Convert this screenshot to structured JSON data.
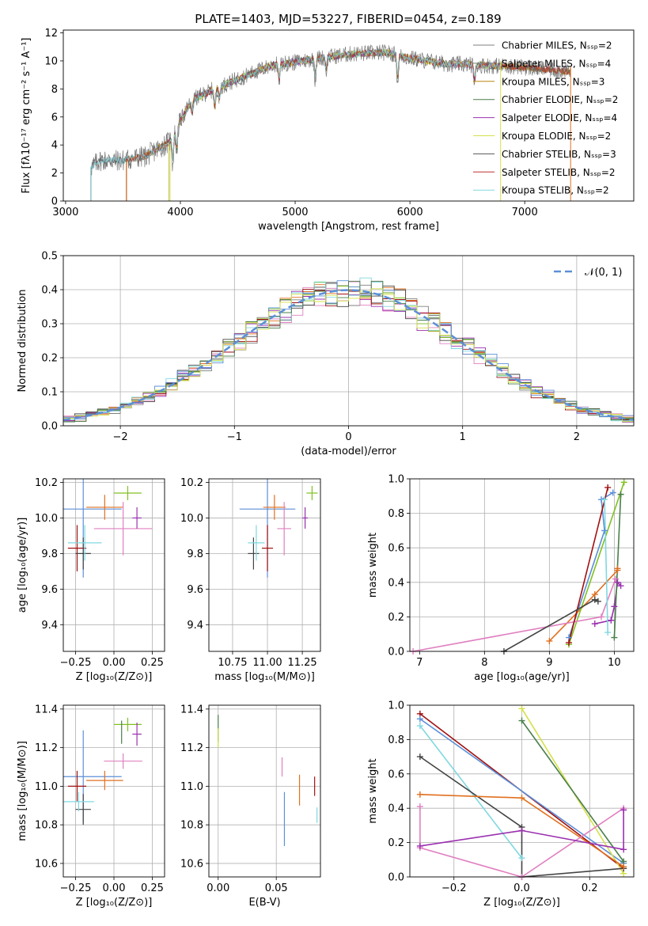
{
  "figure_title": "PLATE=1403, MJD=53227, FIBERID=0454, z=0.189",
  "model_colors": [
    "#7f7f7f",
    "#7f7f7f",
    "#b8860b",
    "#4a7f4a",
    "#9b30b0",
    "#d4e04a",
    "#555555",
    "#c03030",
    "#80d8e0"
  ],
  "chart_data": [
    {
      "id": "spectrum",
      "type": "line",
      "title": "PLATE=1403, MJD=53227, FIBERID=0454, z=0.189",
      "xlabel": "wavelength [Angstrom, rest frame]",
      "ylabel": "Flux [fλ10⁻¹⁷ erg cm⁻² s⁻¹ A⁻¹]",
      "xlim": [
        2980,
        7950
      ],
      "ylim": [
        0,
        12.2
      ],
      "xticks": [
        3000,
        4000,
        5000,
        6000,
        7000
      ],
      "yticks": [
        0,
        2,
        4,
        6,
        8,
        10,
        12
      ],
      "series": [
        {
          "name": "Chabrier MILES, Nₛₛₚ=2",
          "color": "#7f7f7f"
        },
        {
          "name": "Salpeter MILES, Nₛₛₚ=4",
          "color": "#7f7f7f"
        },
        {
          "name": "Kroupa MILES, Nₛₛₚ=3",
          "color": "#b8860b"
        },
        {
          "name": "Chabrier ELODIE, Nₛₛₚ=2",
          "color": "#4a7f4a"
        },
        {
          "name": "Salpeter ELODIE, Nₛₛₚ=4",
          "color": "#9b30b0"
        },
        {
          "name": "Kroupa ELODIE, Nₛₛₚ=2",
          "color": "#d4e04a"
        },
        {
          "name": "Chabrier STELIB, Nₛₛₚ=3",
          "color": "#555555"
        },
        {
          "name": "Salpeter STELIB, Nₛₛₚ=2",
          "color": "#c03030"
        },
        {
          "name": "Kroupa STELIB, Nₛₛₚ=2",
          "color": "#80d8e0"
        }
      ],
      "continuum": {
        "x": [
          3220,
          3300,
          3500,
          3700,
          3900,
          4100,
          4300,
          4500,
          4800,
          5000,
          5200,
          5500,
          5800,
          6000,
          6300,
          6600,
          6900,
          7200,
          7400
        ],
        "y": [
          2.4,
          2.9,
          2.9,
          3.2,
          4.2,
          7.2,
          8.0,
          8.7,
          9.7,
          9.9,
          10.2,
          10.5,
          10.6,
          10.2,
          9.8,
          9.7,
          9.6,
          9.4,
          9.2
        ]
      },
      "grid": false,
      "legend": "top-right"
    },
    {
      "id": "residuals",
      "type": "line",
      "xlabel": "(data-model)/error",
      "ylabel": "Normed distribution",
      "xlim": [
        -2.5,
        2.5
      ],
      "ylim": [
        0,
        0.5
      ],
      "xticks": [
        -2,
        -1,
        0,
        1,
        2
      ],
      "yticks": [
        0.0,
        0.1,
        0.2,
        0.3,
        0.4,
        0.5
      ],
      "legend_label": "𝒩(0, 1)",
      "legend_color": "#5b8fd8",
      "grid": true,
      "legend": "top-right"
    },
    {
      "id": "age-vs-Z",
      "type": "scatter",
      "xlabel": "Z [log₁₀(Z/Z⊙)]",
      "ylabel": "age  [log₁₀(age/yr)]",
      "xlim": [
        -0.33,
        0.33
      ],
      "ylim": [
        9.25,
        10.22
      ],
      "xticks": [
        -0.25,
        0.0,
        0.25
      ],
      "xticklabels": [
        "−0.25",
        "0.00",
        "0.25"
      ],
      "yticks": [
        9.4,
        9.6,
        9.8,
        10.0,
        10.2
      ],
      "points": [
        {
          "x": -0.2,
          "y": 10.05,
          "xerr": 0.5,
          "yerr": 0.77,
          "color": "#5b8fd8"
        },
        {
          "x": -0.06,
          "y": 10.06,
          "xerr": 0.24,
          "yerr": 0.14,
          "color": "#e07020"
        },
        {
          "x": 0.09,
          "y": 10.14,
          "xerr": 0.18,
          "yerr": 0.08,
          "color": "#80c020"
        },
        {
          "x": 0.06,
          "y": 9.94,
          "xerr": 0.38,
          "yerr": 0.3,
          "color": "#e080c0"
        },
        {
          "x": 0.15,
          "y": 10.0,
          "xerr": 0.06,
          "yerr": 0.12,
          "color": "#9b30b0"
        },
        {
          "x": -0.24,
          "y": 9.83,
          "xerr": 0.12,
          "yerr": 0.26,
          "color": "#a01010"
        },
        {
          "x": -0.2,
          "y": 9.8,
          "xerr": 0.1,
          "yerr": 0.18,
          "color": "#444444"
        },
        {
          "x": -0.19,
          "y": 9.86,
          "xerr": 0.22,
          "yerr": 0.2,
          "color": "#80d8e0"
        }
      ],
      "grid": true
    },
    {
      "id": "age-vs-mass",
      "type": "scatter",
      "xlabel": "mass [log₁₀(M/M⊙)]",
      "xlim": [
        10.58,
        11.38
      ],
      "ylim": [
        9.25,
        10.22
      ],
      "xticks": [
        10.75,
        11.0,
        11.25
      ],
      "xticklabels": [
        "10.75",
        "11.00",
        "11.25"
      ],
      "yticks": [
        9.4,
        9.6,
        9.8,
        10.0,
        10.2
      ],
      "points": [
        {
          "x": 11.0,
          "y": 10.05,
          "xerr": 0.4,
          "yerr": 0.77,
          "color": "#5b8fd8"
        },
        {
          "x": 11.05,
          "y": 10.06,
          "xerr": 0.16,
          "yerr": 0.14,
          "color": "#e07020"
        },
        {
          "x": 11.32,
          "y": 10.14,
          "xerr": 0.08,
          "yerr": 0.08,
          "color": "#80c020"
        },
        {
          "x": 11.12,
          "y": 9.94,
          "xerr": 0.1,
          "yerr": 0.3,
          "color": "#e080c0"
        },
        {
          "x": 11.27,
          "y": 10.0,
          "xerr": 0.04,
          "yerr": 0.12,
          "color": "#9b30b0"
        },
        {
          "x": 11.0,
          "y": 9.83,
          "xerr": 0.08,
          "yerr": 0.26,
          "color": "#a01010"
        },
        {
          "x": 10.9,
          "y": 9.8,
          "xerr": 0.08,
          "yerr": 0.18,
          "color": "#444444"
        },
        {
          "x": 10.92,
          "y": 9.86,
          "xerr": 0.12,
          "yerr": 0.2,
          "color": "#80d8e0"
        }
      ],
      "grid": true
    },
    {
      "id": "weight-vs-age",
      "type": "line",
      "xlabel": "age  [log₁₀(age/yr)]",
      "ylabel": "mass weight",
      "xlim": [
        6.85,
        10.3
      ],
      "ylim": [
        0,
        1.0
      ],
      "xticks": [
        7,
        8,
        9,
        10
      ],
      "yticks": [
        0.0,
        0.2,
        0.4,
        0.6,
        0.8,
        1.0
      ],
      "series": [
        {
          "color": "#5b8fd8",
          "x": [
            9.3,
            9.85,
            9.8,
            9.98
          ],
          "y": [
            0.08,
            0.7,
            0.88,
            0.92
          ]
        },
        {
          "color": "#e07020",
          "x": [
            9.0,
            9.7,
            10.05,
            10.05
          ],
          "y": [
            0.06,
            0.33,
            0.47,
            0.48
          ]
        },
        {
          "color": "#80c020",
          "x": [
            9.3,
            10.15
          ],
          "y": [
            0.04,
            0.98
          ]
        },
        {
          "color": "#e080c0",
          "x": [
            6.9,
            9.8,
            10.02
          ],
          "y": [
            0.0,
            0.2,
            0.42
          ]
        },
        {
          "color": "#9b30b0",
          "x": [
            9.7,
            9.95,
            10.0,
            10.05,
            10.1
          ],
          "y": [
            0.16,
            0.18,
            0.26,
            0.4,
            0.38
          ]
        },
        {
          "color": "#a01010",
          "x": [
            9.3,
            9.9
          ],
          "y": [
            0.05,
            0.95
          ]
        },
        {
          "color": "#444444",
          "x": [
            8.3,
            9.7,
            9.75
          ],
          "y": [
            0.0,
            0.3,
            0.29
          ]
        },
        {
          "color": "#80d8e0",
          "x": [
            9.9,
            9.85
          ],
          "y": [
            0.11,
            0.88
          ]
        },
        {
          "color": "#4a7f4a",
          "x": [
            10.0,
            10.1
          ],
          "y": [
            0.08,
            0.91
          ]
        }
      ],
      "grid": true
    },
    {
      "id": "mass-vs-Z",
      "type": "scatter",
      "xlabel": "Z [log₁₀(Z/Z⊙)]",
      "ylabel": "mass [log₁₀(M/M⊙)]",
      "xlim": [
        -0.33,
        0.33
      ],
      "ylim": [
        10.53,
        11.42
      ],
      "xticks": [
        -0.25,
        0.0,
        0.25
      ],
      "xticklabels": [
        "−0.25",
        "0.00",
        "0.25"
      ],
      "yticks": [
        10.6,
        10.8,
        11.0,
        11.2,
        11.4
      ],
      "points": [
        {
          "x": -0.2,
          "y": 11.05,
          "xerr": 0.5,
          "yerr": 0.48,
          "color": "#5b8fd8"
        },
        {
          "x": -0.06,
          "y": 11.03,
          "xerr": 0.24,
          "yerr": 0.1,
          "color": "#e07020"
        },
        {
          "x": 0.09,
          "y": 11.32,
          "xerr": 0.18,
          "yerr": 0.07,
          "color": "#80c020"
        },
        {
          "x": 0.06,
          "y": 11.13,
          "xerr": 0.25,
          "yerr": 0.08,
          "color": "#e080c0"
        },
        {
          "x": 0.15,
          "y": 11.27,
          "xerr": 0.06,
          "yerr": 0.12,
          "color": "#9b30b0"
        },
        {
          "x": -0.24,
          "y": 11.0,
          "xerr": 0.12,
          "yerr": 0.16,
          "color": "#a01010"
        },
        {
          "x": -0.2,
          "y": 10.88,
          "xerr": 0.1,
          "yerr": 0.16,
          "color": "#444444"
        },
        {
          "x": -0.23,
          "y": 10.92,
          "xerr": 0.2,
          "yerr": 0.1,
          "color": "#80d8e0"
        },
        {
          "x": 0.05,
          "y": 11.28,
          "xerr": 0.0,
          "yerr": 0.12,
          "color": "#4a7f4a"
        }
      ],
      "grid": true
    },
    {
      "id": "mass-vs-ebv",
      "type": "scatter",
      "xlabel": "E(B-V)",
      "xlim": [
        -0.008,
        0.088
      ],
      "ylim": [
        10.53,
        11.42
      ],
      "xticks": [
        0.0,
        0.05
      ],
      "xticklabels": [
        "0.00",
        "0.05"
      ],
      "yticks": [
        10.6,
        10.8,
        11.0,
        11.2,
        11.4
      ],
      "points": [
        {
          "x": 0.0,
          "y": 11.3,
          "yerr": 0.14,
          "color": "#4a7f4a"
        },
        {
          "x": 0.0,
          "y": 11.25,
          "yerr": 0.1,
          "color": "#d4e04a"
        },
        {
          "x": 0.055,
          "y": 11.1,
          "yerr": 0.1,
          "color": "#e080c0"
        },
        {
          "x": 0.057,
          "y": 10.83,
          "yerr": 0.28,
          "color": "#5b8fd8"
        },
        {
          "x": 0.07,
          "y": 10.98,
          "yerr": 0.16,
          "color": "#e07020"
        },
        {
          "x": 0.083,
          "y": 11.0,
          "yerr": 0.1,
          "color": "#a01010"
        },
        {
          "x": 0.085,
          "y": 10.85,
          "yerr": 0.08,
          "color": "#80d8e0"
        }
      ],
      "grid": true
    },
    {
      "id": "weight-vs-Z",
      "type": "line",
      "xlabel": "Z [log₁₀(Z/Z⊙)]",
      "ylabel": "mass weight",
      "xlim": [
        -0.33,
        0.33
      ],
      "ylim": [
        0,
        1.0
      ],
      "xticks": [
        -0.2,
        0.0,
        0.2
      ],
      "xticklabels": [
        "−0.2",
        "0.0",
        "0.2"
      ],
      "yticks": [
        0.0,
        0.2,
        0.4,
        0.6,
        0.8,
        1.0
      ],
      "series": [
        {
          "color": "#a01010",
          "x": [
            -0.3,
            0.3
          ],
          "y": [
            0.95,
            0.05
          ]
        },
        {
          "color": "#5b8fd8",
          "x": [
            -0.3,
            0.3
          ],
          "y": [
            0.92,
            0.08
          ]
        },
        {
          "color": "#80d8e0",
          "x": [
            -0.3,
            0.0
          ],
          "y": [
            0.88,
            0.11
          ]
        },
        {
          "color": "#d4e04a",
          "x": [
            0.0,
            0.3
          ],
          "y": [
            0.98,
            0.02
          ]
        },
        {
          "color": "#4a7f4a",
          "x": [
            0.0,
            0.3
          ],
          "y": [
            0.91,
            0.09
          ]
        },
        {
          "color": "#444444",
          "x": [
            -0.3,
            0.0,
            0.0,
            0.3
          ],
          "y": [
            0.7,
            0.29,
            0.0,
            0.05
          ]
        },
        {
          "color": "#e07020",
          "x": [
            -0.3,
            0.0,
            0.3
          ],
          "y": [
            0.48,
            0.46,
            0.06
          ]
        },
        {
          "color": "#e080c0",
          "x": [
            -0.3,
            -0.3,
            0.0,
            0.3
          ],
          "y": [
            0.41,
            0.17,
            0.0,
            0.4
          ]
        },
        {
          "color": "#9b30b0",
          "x": [
            -0.3,
            0.0,
            0.3,
            0.3
          ],
          "y": [
            0.18,
            0.27,
            0.16,
            0.39
          ]
        }
      ],
      "grid": true
    }
  ]
}
